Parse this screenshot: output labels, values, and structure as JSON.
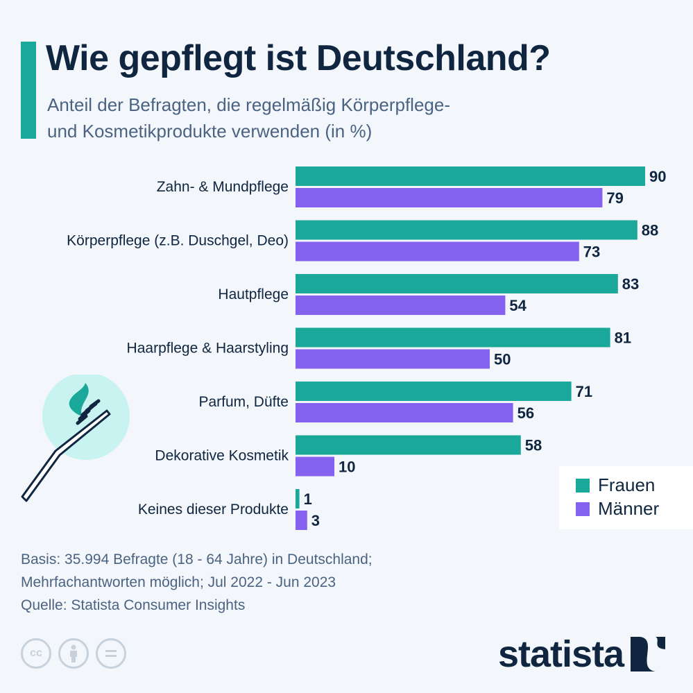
{
  "header": {
    "title": "Wie gepflegt ist Deutschland?",
    "subtitle_line1": "Anteil der Befragten, die regelmäßig Körperpflege-",
    "subtitle_line2": "und Kosmetikprodukte verwenden (in %)"
  },
  "colors": {
    "frauen": "#19a899",
    "maenner": "#8561ef",
    "accent": "#19a899",
    "text": "#0f2540"
  },
  "chart_data": {
    "type": "bar",
    "orientation": "horizontal",
    "title": "Wie gepflegt ist Deutschland?",
    "subtitle": "Anteil der Befragten, die regelmäßig Körperpflege- und Kosmetikprodukte verwenden (in %)",
    "xlabel": "",
    "ylabel": "",
    "unit": "%",
    "xlim": [
      0,
      100
    ],
    "grid": false,
    "legend_position": "bottom-right",
    "categories": [
      "Zahn- & Mundpflege",
      "Körperpflege (z.B. Duschgel, Deo)",
      "Hautpflege",
      "Haarpflege & Haarstyling",
      "Parfum, Düfte",
      "Dekorative Kosmetik",
      "Keines dieser Produkte"
    ],
    "series": [
      {
        "name": "Frauen",
        "color": "#19a899",
        "values": [
          90,
          88,
          83,
          81,
          71,
          58,
          1
        ]
      },
      {
        "name": "Männer",
        "color": "#8561ef",
        "values": [
          79,
          73,
          54,
          50,
          56,
          10,
          3
        ]
      }
    ]
  },
  "legend": {
    "items": [
      "Frauen",
      "Männer"
    ]
  },
  "footer": {
    "basis_line1": "Basis: 35.994 Befragte (18 - 64 Jahre) in Deutschland;",
    "basis_line2": "Mehrfachantworten möglich; Jul 2022 - Jun 2023",
    "source": "Quelle: Statista Consumer Insights"
  },
  "license_icons": [
    "cc",
    "by",
    "nd"
  ],
  "branding": {
    "logo_text": "statista"
  }
}
